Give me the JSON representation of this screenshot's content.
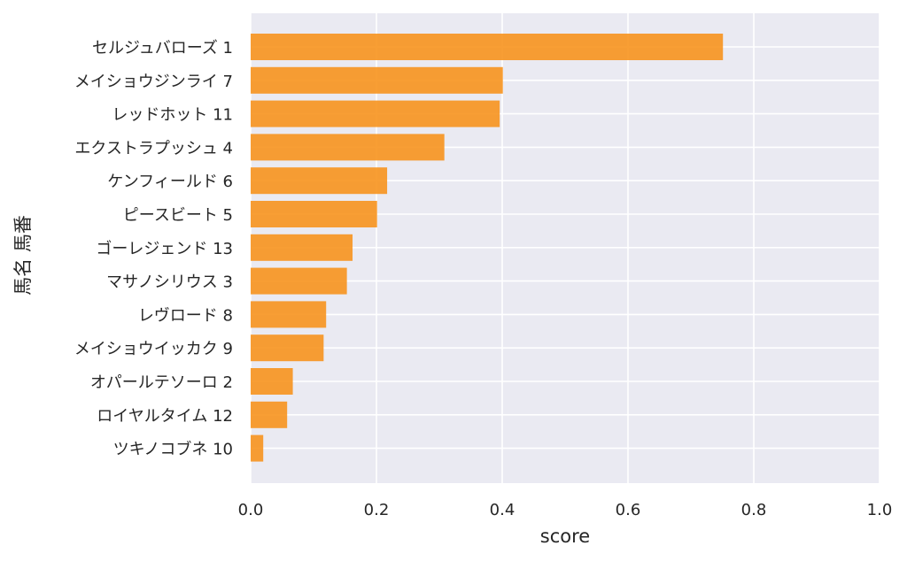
{
  "chart_data": {
    "type": "bar",
    "orientation": "horizontal",
    "xlabel": "score",
    "ylabel": "馬名 馬番",
    "xlim": [
      0,
      1.0
    ],
    "xticks": [
      "0.0",
      "0.2",
      "0.4",
      "0.6",
      "0.8",
      "1.0"
    ],
    "grid": true,
    "colors": {
      "bar": "#f7931e",
      "plot_background": "#eaeaf2",
      "grid": "#ffffff"
    },
    "categories": [
      "セルジュバローズ 1",
      "メイショウジンライ 7",
      "レッドホット 11",
      "エクストラプッシュ 4",
      "ケンフィールド 6",
      "ピースビート 5",
      "ゴーレジェンド 13",
      "マサノシリウス 3",
      "レヴロード 8",
      "メイショウイッカク 9",
      "オパールテソーロ 2",
      "ロイヤルタイム 12",
      "ツキノコブネ 10"
    ],
    "values": [
      0.751,
      0.401,
      0.396,
      0.308,
      0.217,
      0.201,
      0.162,
      0.153,
      0.12,
      0.116,
      0.067,
      0.058,
      0.02
    ]
  }
}
